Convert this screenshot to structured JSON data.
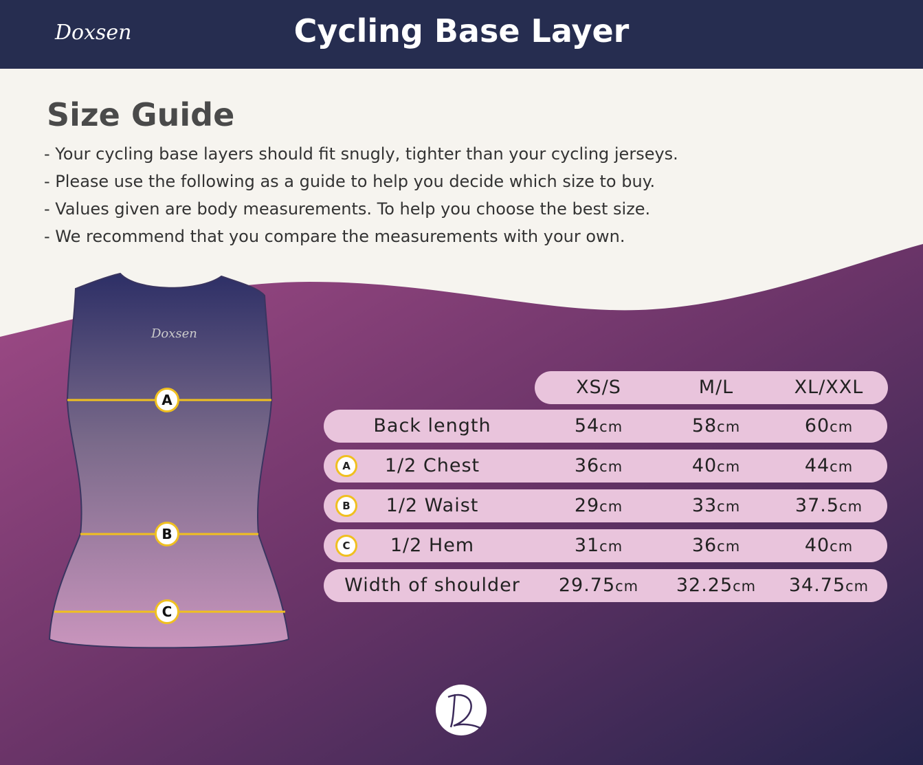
{
  "header": {
    "brand": "Doxsen",
    "title": "Cycling Base Layer"
  },
  "intro": {
    "heading": "Size Guide",
    "lines": [
      "- Your cycling base layers should fit snugly, tighter than your cycling jerseys.",
      "- Please use the following as a guide to help you decide which size to buy.",
      "- Values given are body measurements. To help you choose the best size.",
      "- We recommend that you compare the measurements with your own."
    ]
  },
  "garment": {
    "markers": [
      "A",
      "B",
      "C"
    ]
  },
  "table": {
    "columns": [
      "XS/S",
      "M/L",
      "XL/XXL"
    ],
    "rows": [
      {
        "label": "Back length",
        "cells": [
          {
            "value": 54,
            "unit": "cm"
          },
          {
            "value": 58,
            "unit": "cm"
          },
          {
            "value": 60,
            "unit": "cm"
          }
        ]
      },
      {
        "marker": "A",
        "label": "1/2 Chest",
        "cells": [
          {
            "value": 36,
            "unit": "cm"
          },
          {
            "value": 40,
            "unit": "cm"
          },
          {
            "value": 44,
            "unit": "cm"
          }
        ]
      },
      {
        "marker": "B",
        "label": "1/2 Waist",
        "cells": [
          {
            "value": 29,
            "unit": "cm"
          },
          {
            "value": 33,
            "unit": "cm"
          },
          {
            "value": 37.5,
            "unit": "cm"
          }
        ]
      },
      {
        "marker": "C",
        "label": "1/2 Hem",
        "cells": [
          {
            "value": 31,
            "unit": "cm"
          },
          {
            "value": 36,
            "unit": "cm"
          },
          {
            "value": 40,
            "unit": "cm"
          }
        ]
      },
      {
        "label": "Width of shoulder",
        "cells": [
          {
            "value": 29.75,
            "unit": "cm"
          },
          {
            "value": 32.25,
            "unit": "cm"
          },
          {
            "value": 34.75,
            "unit": "cm"
          }
        ]
      }
    ]
  }
}
